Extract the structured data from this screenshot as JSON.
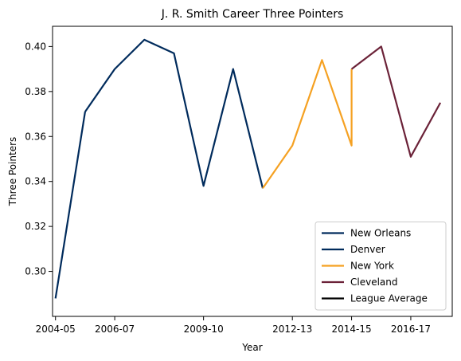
{
  "chart_data": {
    "type": "line",
    "title": "J. R. Smith Career Three Pointers",
    "xlabel": "Year",
    "ylabel": "Three Pointers",
    "x_tick_labels": [
      "2004-05",
      "2006-07",
      "2009-10",
      "2012-13",
      "2014-15",
      "2016-17"
    ],
    "x_tick_seasons": [
      2004,
      2006,
      2009,
      2012,
      2014,
      2016
    ],
    "xlim": [
      2003.9,
      2017.4
    ],
    "ylim": [
      0.28,
      0.409
    ],
    "y_ticks": [
      0.3,
      0.32,
      0.34,
      0.36,
      0.38,
      0.4
    ],
    "y_tick_labels": [
      "0.30",
      "0.32",
      "0.34",
      "0.36",
      "0.38",
      "0.40"
    ],
    "grid": false,
    "legend_position": "lower-right",
    "series": [
      {
        "name": "New Orleans",
        "color": "#002b5c",
        "x": [
          2004,
          2005
        ],
        "y": [
          0.288,
          0.371
        ]
      },
      {
        "name": "Denver",
        "color": "#002b5c",
        "x": [
          2005,
          2006,
          2007,
          2008,
          2009,
          2010,
          2011
        ],
        "y": [
          0.371,
          0.39,
          0.403,
          0.397,
          0.338,
          0.39,
          0.337
        ]
      },
      {
        "name": "New York",
        "color": "#f5a122",
        "x": [
          2011,
          2012,
          2013,
          2014,
          2014
        ],
        "y": [
          0.337,
          0.356,
          0.394,
          0.356,
          0.39
        ]
      },
      {
        "name": "Cleveland",
        "color": "#6b2238",
        "x": [
          2014,
          2015,
          2016,
          2017
        ],
        "y": [
          0.39,
          0.4,
          0.351,
          0.375
        ]
      },
      {
        "name": "League Average",
        "color": "#000000",
        "x": [],
        "y": []
      }
    ]
  }
}
